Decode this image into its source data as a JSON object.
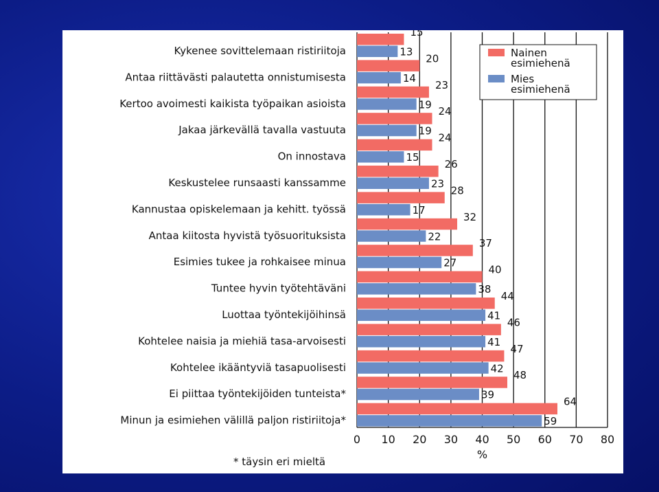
{
  "chart_data": {
    "type": "bar",
    "orientation": "horizontal",
    "categories": [
      "Kykenee sovittelemaan ristiriitoja",
      "Antaa riittävästi palautetta onnistumisesta",
      "Kertoo avoimesti kaikista työpaikan asioista",
      "Jakaa järkevällä tavalla vastuuta",
      "On innostava",
      "Keskustelee runsaasti kanssamme",
      "Kannustaa opiskelemaan ja kehitt. työssä",
      "Antaa kiitosta hyvistä työsuorituksista",
      "Esimies tukee ja rohkaisee minua",
      "Tuntee hyvin työtehtäväni",
      "Luottaa työntekijöihinsä",
      "Kohtelee naisia ja miehiä tasa-arvoisesti",
      "Kohtelee ikääntyviä tasapuolisesti",
      "Ei piittaa työntekijöiden tunteista*",
      "Minun ja esimiehen välillä paljon ristiriitoja*"
    ],
    "series": [
      {
        "name": "Nainen esimiehenä",
        "name_lines": [
          "Nainen",
          "esimiehenä"
        ],
        "color": "#f26b64",
        "values": [
          15,
          20,
          23,
          24,
          24,
          26,
          28,
          32,
          37,
          40,
          44,
          46,
          47,
          48,
          64
        ]
      },
      {
        "name": "Mies esimiehenä",
        "name_lines": [
          "Mies",
          "esimiehenä"
        ],
        "color": "#6b8dc6",
        "values": [
          13,
          14,
          19,
          19,
          15,
          23,
          17,
          22,
          27,
          38,
          41,
          41,
          42,
          39,
          59
        ]
      }
    ],
    "xlabel": "%",
    "xlim": [
      0,
      80
    ],
    "xticks": [
      0,
      10,
      20,
      30,
      40,
      50,
      60,
      70,
      80
    ],
    "grid": "vertical",
    "legend": "top-right",
    "footnote": "* täysin eri mieltä"
  }
}
